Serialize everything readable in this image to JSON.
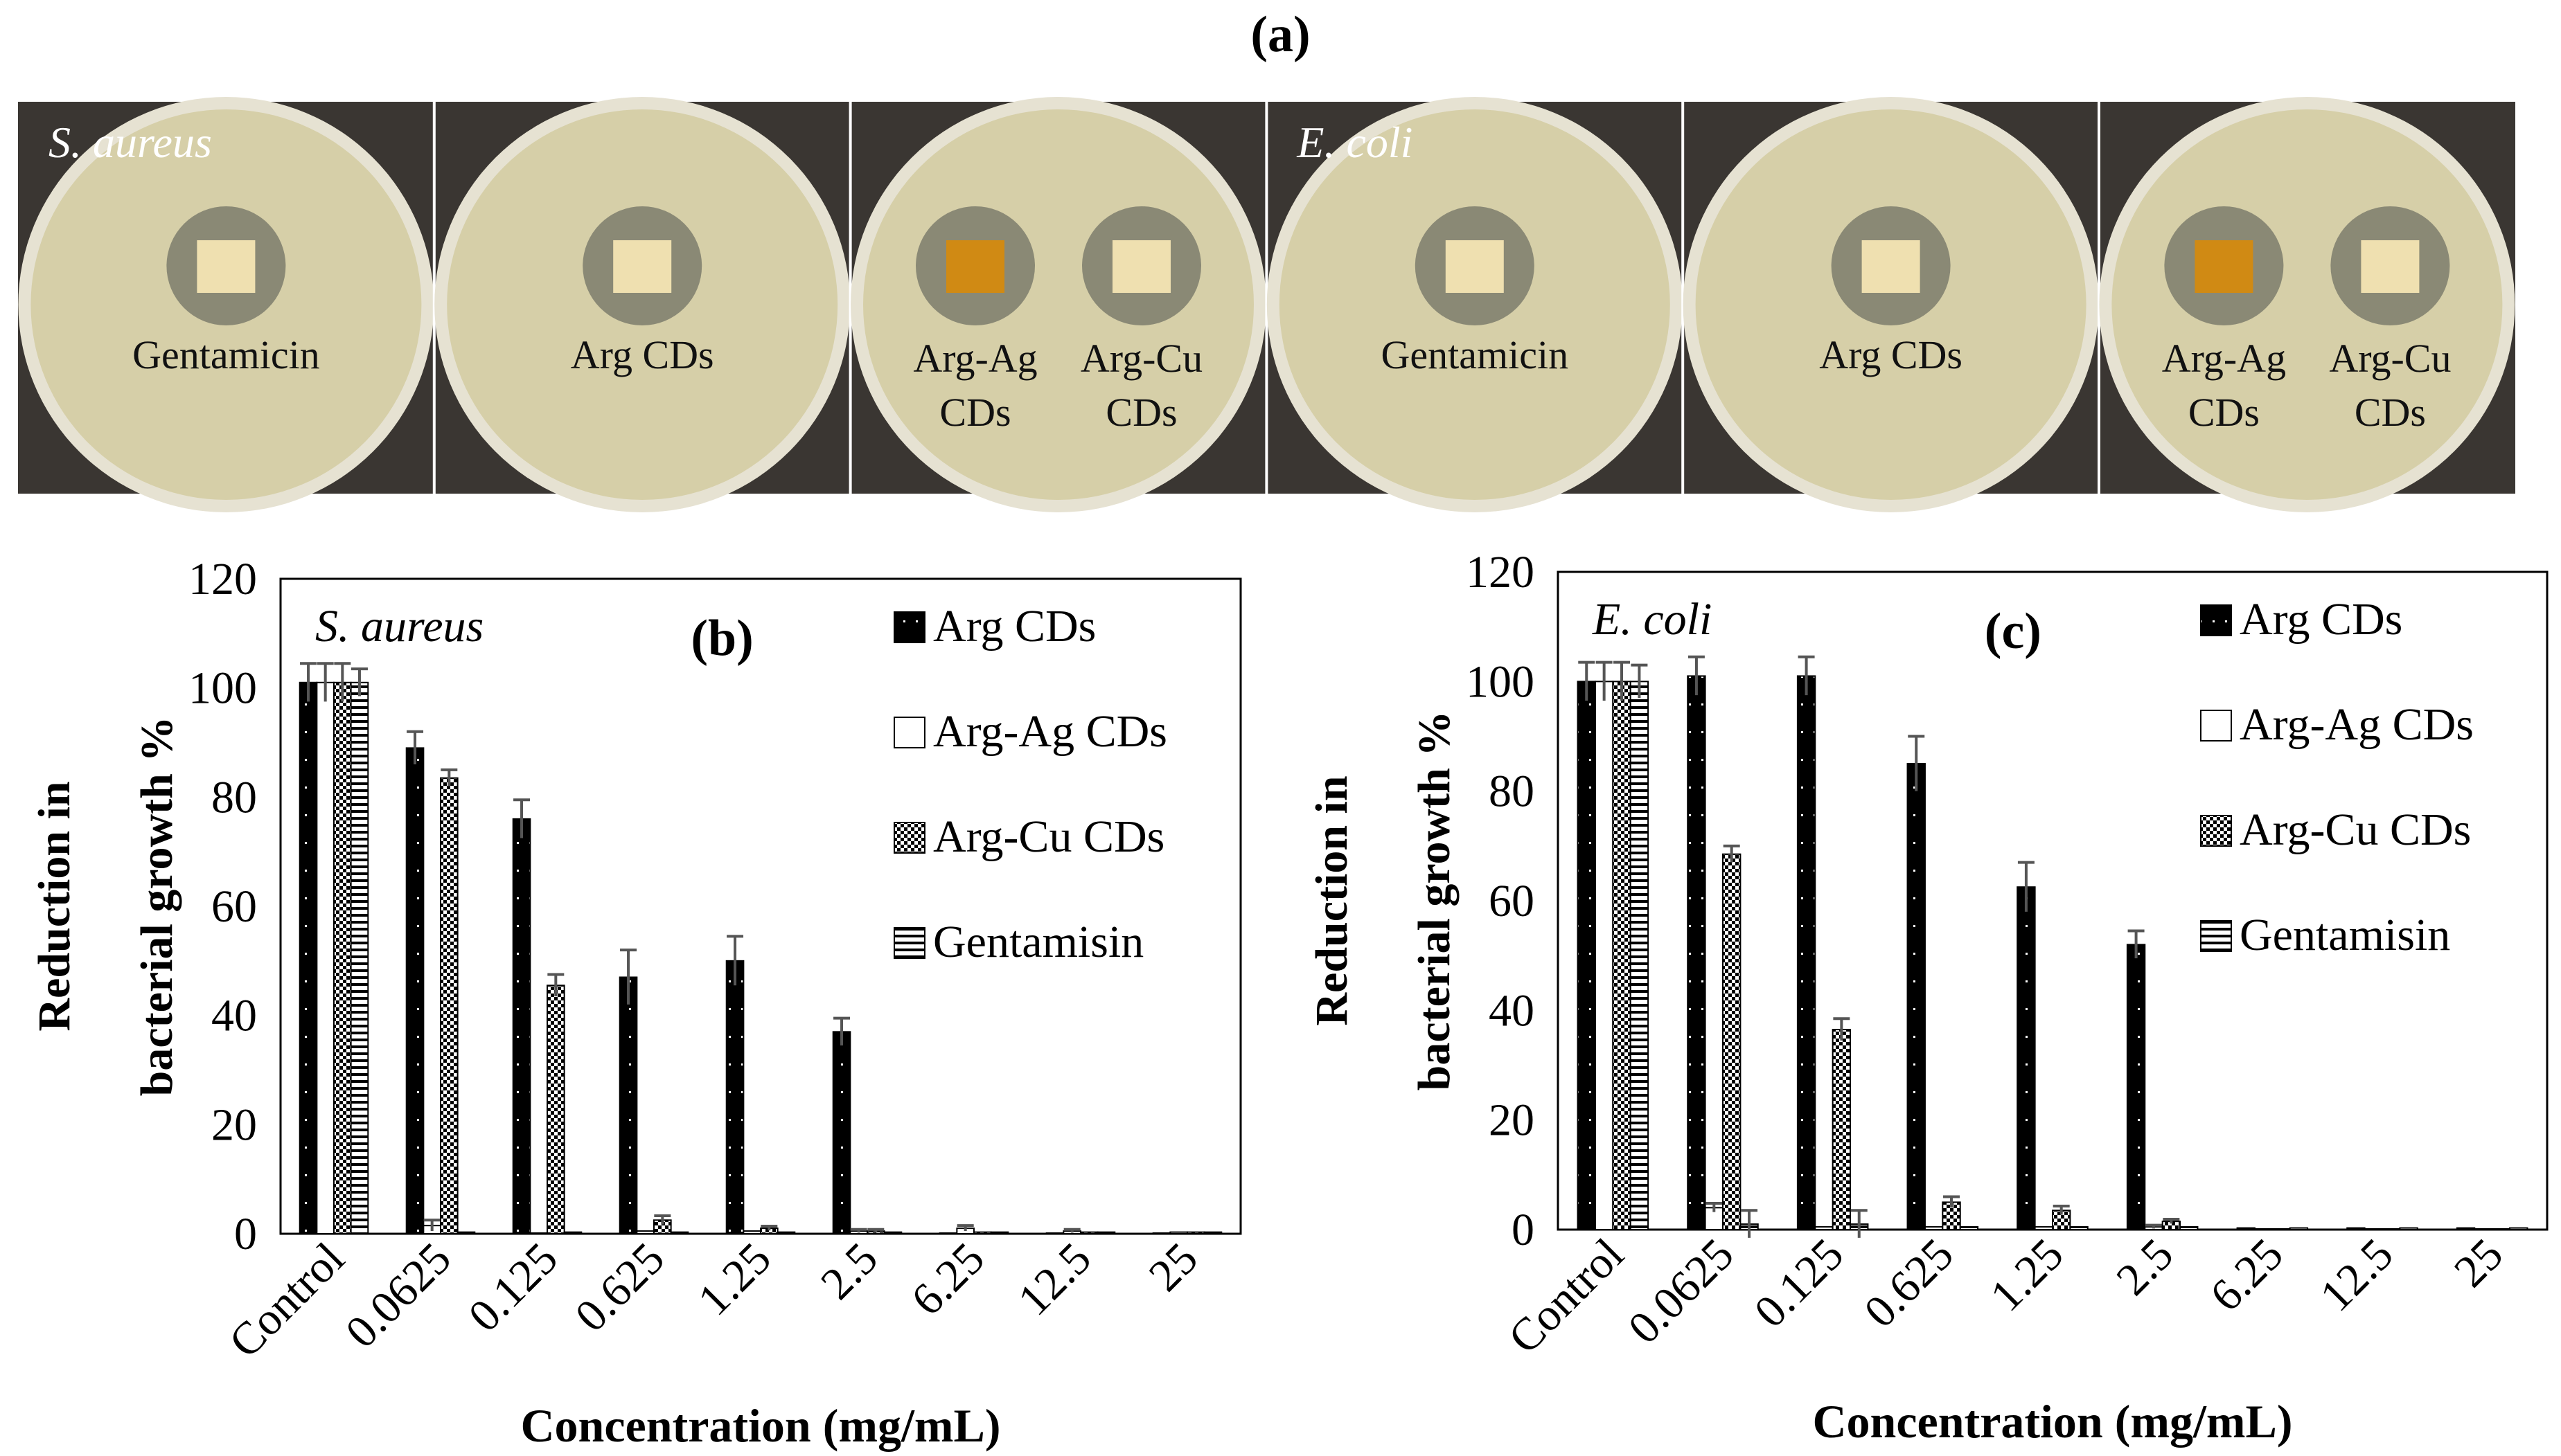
{
  "figure": {
    "panel_a_label": "(a)"
  },
  "plates": {
    "items": [
      {
        "labels": [
          "Gentamicin"
        ],
        "species": "S. aureus",
        "disk_color": "#efe0b0"
      },
      {
        "labels": [
          "Arg CDs"
        ],
        "species": "",
        "disk_color": "#efe0b0"
      },
      {
        "labels": [
          "Arg-Ag CDs",
          "Arg-Cu CDs"
        ],
        "species": "",
        "disk_color": "#d08a14"
      },
      {
        "labels": [
          "Gentamicin"
        ],
        "species": "E. coli",
        "disk_color": "#efe0b0"
      },
      {
        "labels": [
          "Arg CDs"
        ],
        "species": "",
        "disk_color": "#efe0b0"
      },
      {
        "labels": [
          "Arg-Ag CDs",
          "Arg-Cu CDs"
        ],
        "species": "",
        "disk_color": "#d08a14"
      }
    ],
    "colors": {
      "agar": "#d6cfa8",
      "rim": "#e6e2d2",
      "background": "#3a3632",
      "inhibition_zone": "#7c7c6c"
    }
  },
  "chart_data": [
    {
      "type": "bar",
      "panel": "(b)",
      "annotation": "S. aureus",
      "ylabel": "Reduction in bacterial growth %",
      "xlabel": "Concentration (mg/mL)",
      "ylim": [
        0,
        120
      ],
      "yticks": [
        0,
        20,
        40,
        60,
        80,
        100,
        120
      ],
      "categories": [
        "Control",
        "0.0625",
        "0.125",
        "0.625",
        "1.25",
        "2.5",
        "6.25",
        "12.5",
        "25"
      ],
      "series": [
        {
          "name": "Arg CDs",
          "pattern": "black",
          "values": [
            101,
            89,
            76,
            47,
            50,
            37,
            0,
            0,
            0
          ],
          "errors": [
            3.5,
            3,
            3.5,
            5,
            4.5,
            2.5,
            0,
            0,
            0
          ]
        },
        {
          "name": "Arg-Ag CDs",
          "pattern": "white",
          "values": [
            101,
            1.5,
            0,
            0.5,
            0.5,
            0.5,
            1,
            0.5,
            0.3
          ],
          "errors": [
            3.5,
            1,
            0,
            0,
            0,
            0.3,
            0.5,
            0.3,
            0
          ]
        },
        {
          "name": "Arg-Cu CDs",
          "pattern": "checker",
          "values": [
            101,
            83.5,
            45.5,
            2.5,
            1,
            0.5,
            0.3,
            0.3,
            0.3
          ],
          "errors": [
            3.5,
            1.5,
            2,
            0.8,
            0.4,
            0.3,
            0,
            0,
            0
          ]
        },
        {
          "name": "Gentamisin",
          "pattern": "hlines",
          "values": [
            101,
            0.3,
            0.3,
            0.3,
            0.3,
            0.3,
            0.3,
            0.3,
            0.3
          ],
          "errors": [
            2.5,
            0,
            0,
            0,
            0,
            0,
            0,
            0,
            0
          ]
        }
      ]
    },
    {
      "type": "bar",
      "panel": "(c)",
      "annotation": "E. coli",
      "ylabel": "Reduction in bacterial growth %",
      "xlabel": "Concentration (mg/mL)",
      "ylim": [
        0,
        120
      ],
      "yticks": [
        0,
        20,
        40,
        60,
        80,
        100,
        120
      ],
      "categories": [
        "Control",
        "0.0625",
        "0.125",
        "0.625",
        "1.25",
        "2.5",
        "6.25",
        "12.5",
        "25"
      ],
      "series": [
        {
          "name": "Arg CDs",
          "pattern": "black",
          "values": [
            100,
            101,
            101,
            85,
            62.5,
            52,
            0.3,
            0.3,
            0.3
          ],
          "errors": [
            3.5,
            3.5,
            3.5,
            5,
            4.5,
            2.5,
            0,
            0,
            0
          ]
        },
        {
          "name": "Arg-Ag CDs",
          "pattern": "white",
          "values": [
            100,
            4,
            0.5,
            0.5,
            0.5,
            0.5,
            0,
            0,
            0
          ],
          "errors": [
            3.5,
            0.8,
            0,
            0,
            0,
            0.3,
            0,
            0,
            0
          ]
        },
        {
          "name": "Arg-Cu CDs",
          "pattern": "checker",
          "values": [
            100,
            68.5,
            36.5,
            5,
            3.5,
            1.5,
            0,
            0,
            0
          ],
          "errors": [
            3.5,
            1.5,
            2,
            1,
            0.8,
            0.4,
            0,
            0,
            0
          ]
        },
        {
          "name": "Gentamisin",
          "pattern": "hlines",
          "values": [
            100,
            1,
            1,
            0.5,
            0.5,
            0.5,
            0.3,
            0.3,
            0.3
          ],
          "errors": [
            3,
            2.5,
            2.5,
            0,
            0,
            0,
            0,
            0,
            0
          ]
        }
      ]
    }
  ]
}
